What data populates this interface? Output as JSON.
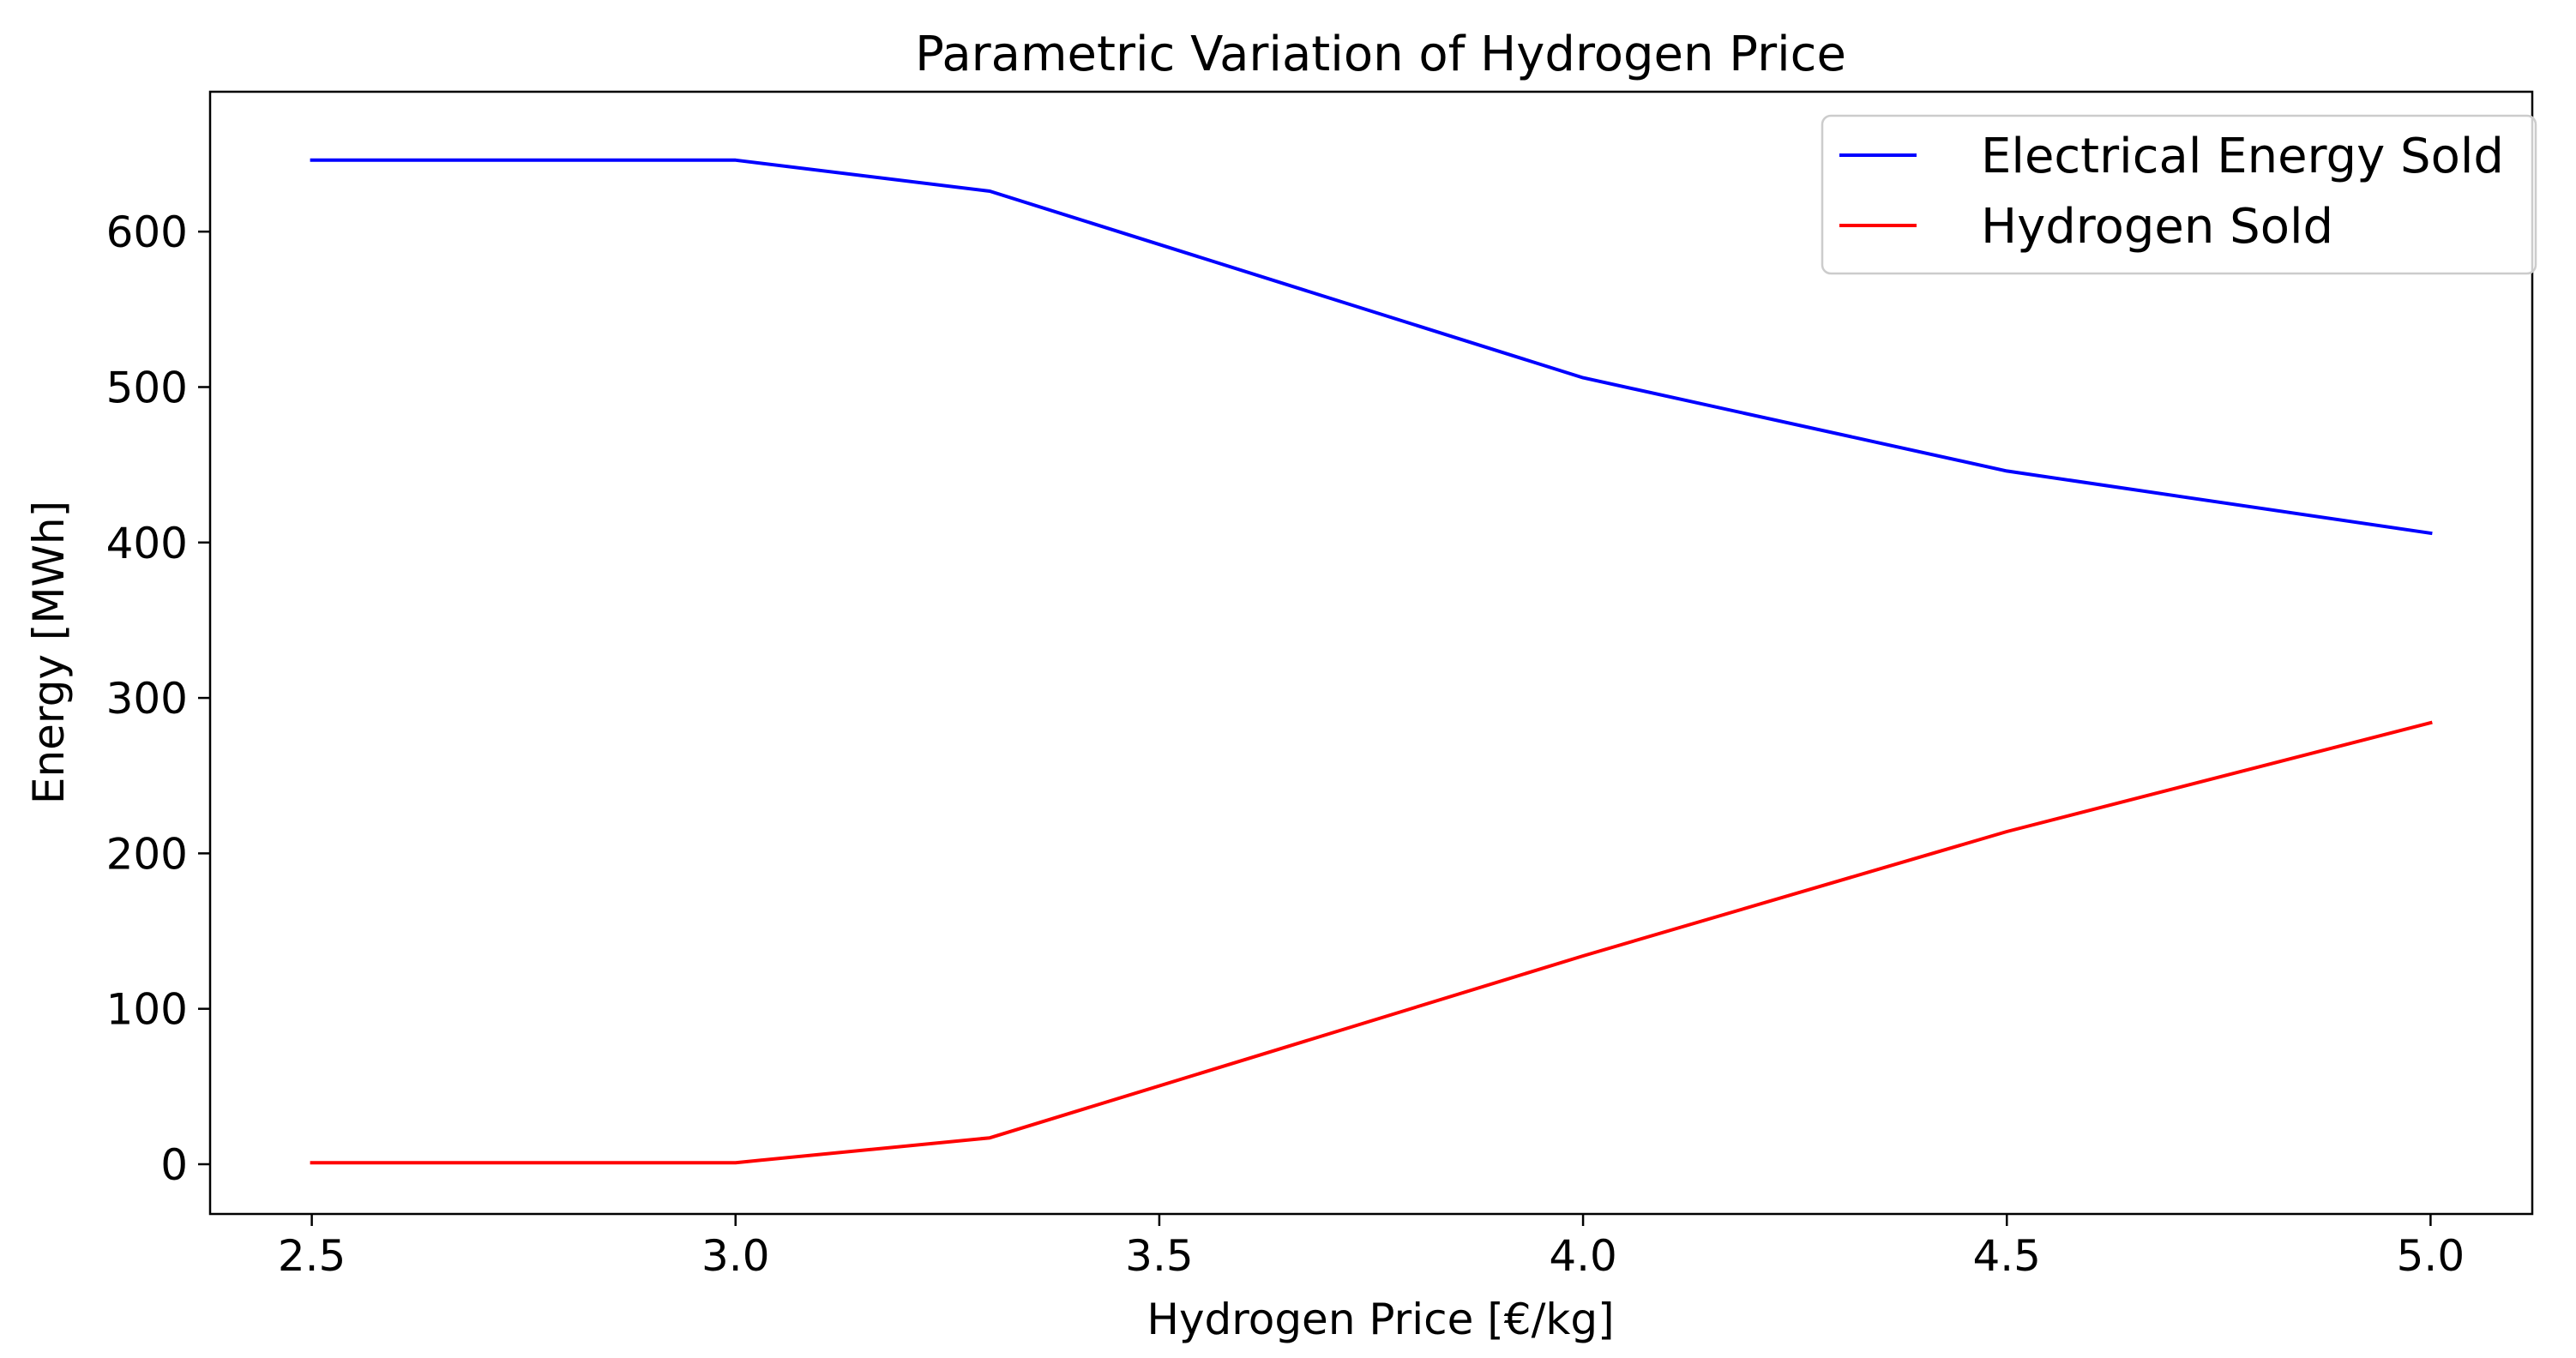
{
  "chart_data": {
    "type": "line",
    "title": "Parametric Variation of Hydrogen Price",
    "xlabel": "Hydrogen Price  [€/kg]",
    "ylabel": "Energy [MWh]",
    "x": [
      2.5,
      3.0,
      3.3,
      4.0,
      4.5,
      5.0
    ],
    "xlim": [
      2.38,
      5.12
    ],
    "ylim": [
      -32,
      690
    ],
    "xticks": [
      2.5,
      3.0,
      3.5,
      4.0,
      4.5,
      5.0
    ],
    "xtick_labels": [
      "2.5",
      "3.0",
      "3.5",
      "4.0",
      "4.5",
      "5.0"
    ],
    "yticks": [
      0,
      100,
      200,
      300,
      400,
      500,
      600
    ],
    "ytick_labels": [
      "0",
      "100",
      "200",
      "300",
      "400",
      "500",
      "600"
    ],
    "grid": false,
    "legend_position": "top-right",
    "series": [
      {
        "name": "Electrical Energy Sold",
        "color": "#0000ff",
        "values": [
          646,
          646,
          626,
          506,
          446,
          406
        ]
      },
      {
        "name": "Hydrogen Sold",
        "color": "#ff0000",
        "values": [
          1,
          1,
          17,
          134,
          214,
          284
        ]
      }
    ]
  }
}
